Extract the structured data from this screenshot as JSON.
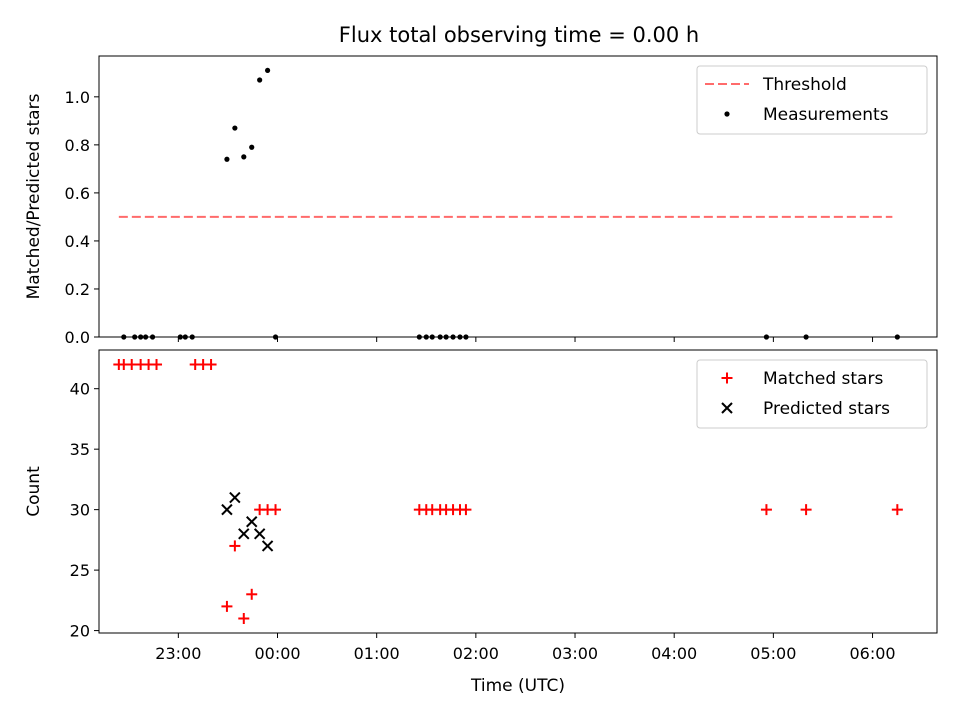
{
  "figure": {
    "title": "Flux total observing time = 0.00 h"
  },
  "chart_data": [
    {
      "type": "scatter",
      "xlabel": "",
      "ylabel": "Matched/Predicted stars",
      "xlim_hours": [
        -1.8,
        6.65
      ],
      "ylim": [
        0,
        1.17
      ],
      "yticks": [
        "0.0",
        "0.2",
        "0.4",
        "0.6",
        "0.8",
        "1.0"
      ],
      "legend": {
        "placement": "top-right"
      },
      "series": [
        {
          "name": "Threshold",
          "kind": "line",
          "style": "dashed",
          "color": "#ff6b6b",
          "x": [
            -1.6,
            6.2
          ],
          "y": [
            0.5,
            0.5
          ]
        },
        {
          "name": "Measurements",
          "kind": "scatter",
          "color": "#000000",
          "x": [
            -1.55,
            -1.44,
            -1.38,
            -1.33,
            -1.26,
            -0.98,
            -0.93,
            -0.86,
            -0.51,
            -0.43,
            -0.34,
            -0.26,
            -0.18,
            -0.1,
            -0.02,
            1.43,
            1.5,
            1.56,
            1.64,
            1.7,
            1.77,
            1.84,
            1.9,
            4.93,
            5.33,
            6.25
          ],
          "y": [
            0,
            0,
            0,
            0,
            0,
            0,
            0,
            0,
            0.74,
            0.87,
            0.75,
            0.79,
            1.07,
            1.11,
            0,
            0,
            0,
            0,
            0,
            0,
            0,
            0,
            0,
            0,
            0,
            0
          ]
        }
      ]
    },
    {
      "type": "scatter",
      "xlabel": "Time (UTC)",
      "ylabel": "Count",
      "xlim_hours": [
        -1.8,
        6.65
      ],
      "ylim": [
        19.8,
        43.2
      ],
      "yticks": [
        "20",
        "25",
        "30",
        "35",
        "40"
      ],
      "xticks": [
        "23:00",
        "00:00",
        "01:00",
        "02:00",
        "03:00",
        "04:00",
        "05:00",
        "06:00"
      ],
      "legend": {
        "placement": "top-right"
      },
      "series": [
        {
          "name": "Matched stars",
          "marker": "plus",
          "color": "#ff0000",
          "x": [
            -1.6,
            -1.55,
            -1.47,
            -1.38,
            -1.3,
            -1.22,
            -0.83,
            -0.75,
            -0.67,
            -0.51,
            -0.43,
            -0.34,
            -0.26,
            -0.18,
            -0.1,
            -0.02,
            1.43,
            1.5,
            1.56,
            1.64,
            1.7,
            1.77,
            1.84,
            1.9,
            4.93,
            5.33,
            6.25
          ],
          "y": [
            42,
            42,
            42,
            42,
            42,
            42,
            42,
            42,
            42,
            22,
            27,
            21,
            23,
            30,
            30,
            30,
            30,
            30,
            30,
            30,
            30,
            30,
            30,
            30,
            30,
            30,
            30
          ]
        },
        {
          "name": "Predicted stars",
          "marker": "x",
          "color": "#000000",
          "x": [
            -0.51,
            -0.43,
            -0.34,
            -0.26,
            -0.18,
            -0.1
          ],
          "y": [
            30,
            31,
            28,
            29,
            28,
            27
          ]
        }
      ]
    }
  ]
}
